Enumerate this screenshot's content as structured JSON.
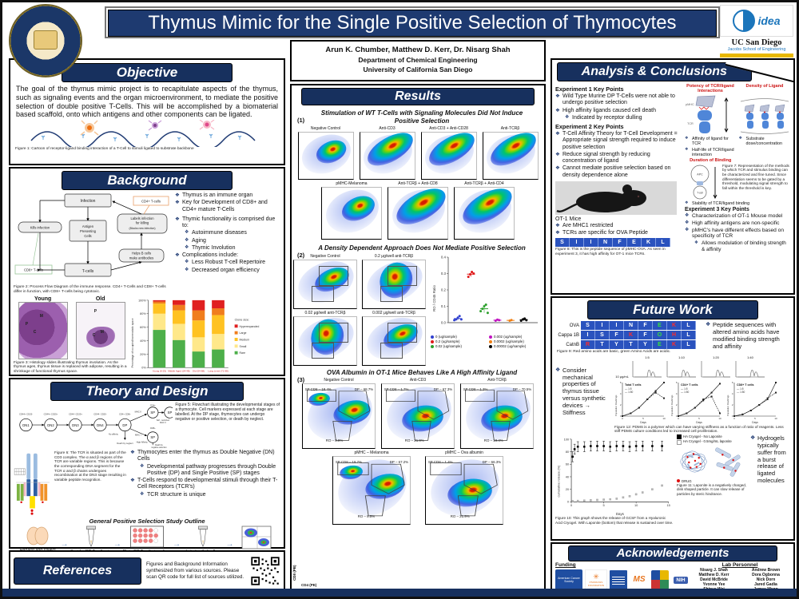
{
  "header": {
    "title": "Thymus Mimic for the Single Positive Selection of Thymocytes",
    "idea_logo": "idea",
    "ucsd": "UC San Diego",
    "school": "Jacobs School of Engineering"
  },
  "authors": {
    "names": "Arun K. Chumber, Matthew D. Kerr, Dr. Nisarg Shah",
    "dept": "Department of Chemical Engineering",
    "univ": "University of California San Diego"
  },
  "objective": {
    "heading": "Objective",
    "body": "The goal of the thymus mimic project is to recapitulate aspects of the thymus, such as signaling events and the organ microenvironment, to mediate the positive selection of double positive T-Cells. This will be accomplished by a biomaterial based scaffold, onto which antigens and other components can be ligated.",
    "fig1": "Figure 1: Cartoon of receptor-ligand binding interaction of a T-Cell to stimuli ligated to substrate backbone"
  },
  "background": {
    "heading": "Background",
    "flow": {
      "infection": "Infection",
      "kills": "Kills infection",
      "apc1": "Antigen",
      "apc2": "Presenting",
      "apc3": "Cells",
      "labels1": "Labels infection",
      "labels2": "for killing",
      "labels3": "(Blocks new infection)",
      "helps1": "Helps B cells",
      "helps2": "make antibodies",
      "tcells": "T-cells",
      "cd4": "CD4+ T-cells",
      "cd8": "CD8+ T-cells"
    },
    "fig2": "Figure 2: Process Flow Diagram of the immune response. CD4+ T-Cells and CD8+ T-cells differ in function, with CD8+ T-cells being cytotoxic.",
    "bullets1": [
      "Thymus is an immune organ",
      "Key for Development of CD8+ and CD4+ mature T-Cells"
    ],
    "b2_title": "Thymic functionality is comprised due to:",
    "bullets2": [
      "Autoimmune diseases",
      "Aging",
      "Thymic Involution"
    ],
    "b3_title": "Complications include:",
    "bullets3": [
      "Less Robust T-cell Repertoire",
      "Decreased organ efficiency"
    ],
    "young": "Young",
    "old": "Old",
    "young_marks": [
      "M",
      "C",
      "P"
    ],
    "old_marks": [
      "P",
      "C",
      "M"
    ],
    "fig3": "Figure 3: Histology slides illustrating thymus involution. As the thymus ages, thymus tissue is replaced with adipose, resulting in a shrinkage of functional thymus space."
  },
  "theory": {
    "heading": "Theory and Design",
    "fig5": "Figure 5: Flowchart illustrating the developmental stages of a thymocyte. Cell markers expressed at each stage are labelled. At the DP stage, thymocytes can undergo negative or positive selection, or death by neglect.",
    "stages": [
      "DN1",
      "DN2",
      "DN3",
      "DN4",
      "DP"
    ],
    "sp": "SP",
    "stage_markers": [
      "CD44+ CD25-",
      "CD44+ CD25+",
      "CD44- CD25+",
      "CD44- CD25-",
      "CD4+ CD8+"
    ],
    "ann": {
      "mhc2": "MHC II",
      "mhc1": "MHC I",
      "no_aff": "No affinity",
      "neglect": "Death by neglect",
      "high_aff": "High Affinity",
      "neg1": "Death by",
      "neg2": "negative selection",
      "self1": "Self - restricted",
      "self2": "MHC II",
      "cd4": "CD4+",
      "cd8": "CD8+"
    },
    "fig6": "Figure 6: The TCR is situated as part of the CD3 complex. The α and β regions of the TCR are variable regions. This is because the corresponding DNA segment for the TCR α and β chains undergoes recombination at the DN3 stage resulting in variable peptide recognition.",
    "bullets": [
      "Thymocytes enter the thymus as Double Negative (DN) Cells",
      "Developmental pathway progresses through Double Positive (DP) and Single Positive (SP) stages",
      "T-Cells respond to developmental stimuli through their T-Cell Receptors (TCR's)",
      "TCR structure is unique"
    ],
    "outline_title": "General Positive Selection Study Outline",
    "steps": [
      "Harvest and collect murine cells from thymus",
      "Sort for DP T-cells via flow cytometry",
      "Plate DP T-cells in culture conditions",
      "Label cells for flow cytometry",
      "Analyze with flow Cytometry"
    ]
  },
  "references": {
    "heading": "References",
    "body": "Figures and Background Information synthesized from various sources. Please scan QR code for full list of sources utilized."
  },
  "results": {
    "heading": "Results",
    "s1": {
      "num": "(1)",
      "title": "Stimulation of WT T-Cells with Signaling Molecules Did Not Induce Positive Selection",
      "row1": [
        "Negative Control",
        "Anti-CD3",
        "Anti-CD3 + Anti-CD28",
        "Anti-TCRβ"
      ],
      "row2": [
        "pMHC-Melanoma",
        "Anti-TCRβ + Anti-CD8",
        "Anti-TCRβ + Anti-CD4"
      ]
    },
    "s2": {
      "num": "(2)",
      "title": "A Density Dependent Approach Does Not Mediate Positive Selection",
      "plots": [
        "Negative Control",
        "0.2 μg/well anti-TCRβ",
        "0.02 μg/well anti-TCRβ",
        "0.002 μg/well anti-TCRβ"
      ]
    },
    "s3": {
      "num": "(3)",
      "title": "OVA Albumin in OT-1 Mice Behaves Like A High Affinity Ligand",
      "row1": [
        {
          "t": "Negative Control",
          "sp": "SP CD8 – 18.4%",
          "dp": "DP – 68.7%",
          "ro": "RO – 8.9%"
        },
        {
          "t": "Anti-CD3",
          "sp": "SP CD8 – 1.7%",
          "dp": "DP – 67.3%",
          "ro": "RO – 21.9%"
        },
        {
          "t": "Anti-TCRβ",
          "sp": "SP CD8 – 1.3%",
          "dp": "DP – 70.5%",
          "ro": "RO – 19.4%"
        }
      ],
      "row2": [
        {
          "t": "pMHC – Melanoma",
          "sp": "SP CD8 – 19.7%",
          "dp": "DP – 67.2%",
          "ro": "RO – 8.5%"
        },
        {
          "t": "pMHC – Ova albumin",
          "sp": "SP CD8 – 1.4%",
          "dp": "DP – 66.3%",
          "ro": "RO – 21.9%"
        }
      ]
    },
    "yaxis": "CD8 (PB)",
    "xaxis": "CD4 (PE)"
  },
  "analysis": {
    "heading": "Analysis & Conclusions",
    "exp1_title": "Experiment 1 Key Points",
    "exp1": [
      "Wild Type Murine DP T-Cells were not able to undergo positive selection",
      "High affinity ligands caused cell death"
    ],
    "exp1_sub": "Indicated by receptor dulling",
    "exp2_title": "Experiment 2 Key Points",
    "exp2": [
      "T-Cell Affinity Theory for T-Cell Development = Appropriate signal strength required to induce positive selection",
      "Reduce signal strength by reducing concentration of ligand",
      "Cannot mediate positive selection based on density dependence alone"
    ],
    "potency": "Potency of TCR/ligand Interactions",
    "density": "Density of Ligand",
    "pmhc": "pMHC",
    "tcr": "TCR",
    "aff_bullets": [
      "Affinity of ligand for TCR",
      "Half-life of TCR/ligand interaction"
    ],
    "duration": "Duration of Binding",
    "substrate": "Substrate dose/concentration",
    "apc": "APC",
    "tcell": "T-cell",
    "fig7": "Figure 7: Representation of the methods by which TCR and stimulus binding can be characterized and fine tuned. Since differentiation seems to be gated by a threshold, modulating signal strength to fall within the threshold is key.",
    "stability": "Stability of TCR/ligand binding",
    "exp3_title": "Experiment 3 Key Points",
    "exp3": [
      "Characterization of OT-1 Mouse model",
      "High affinity antigens are non-specific",
      "pMHC's have different effects based on specificity of TCR"
    ],
    "exp3_sub": "Allows modulation of binding strength & affinity",
    "ot1_title": "OT-1 Mice",
    "ot1": [
      "Are MHC1 restricted",
      "TCRs are specific for OVA Peptide"
    ],
    "peptide": [
      "S",
      "I",
      "I",
      "N",
      "F",
      "E",
      "K",
      "L"
    ],
    "fig8": "Figure 8: This is the peptide sequence of pMHC-OVA. As seen in experiment 3, it has high affinity for OT-1 mice TCRs."
  },
  "future": {
    "heading": "Future Work",
    "pep_rows": [
      {
        "label": "OVA",
        "seq": [
          "S",
          "I",
          "I",
          "N",
          "F",
          "E",
          "K",
          "L"
        ],
        "cls": [
          "w",
          "w",
          "w",
          "w",
          "w",
          "g",
          "r",
          "w"
        ]
      },
      {
        "label": "Cappa 1B",
        "seq": [
          "I",
          "S",
          "F",
          "K",
          "F",
          "O",
          "H",
          "L"
        ],
        "cls": [
          "w",
          "w",
          "w",
          "r",
          "w",
          "g",
          "r",
          "w"
        ]
      },
      {
        "label": "CatnB",
        "seq": [
          "R",
          "T",
          "Y",
          "T",
          "Y",
          "E",
          "K",
          "L"
        ],
        "cls": [
          "r",
          "w",
          "w",
          "w",
          "w",
          "g",
          "r",
          "w"
        ]
      }
    ],
    "fig9": "Figure 9: Red amino acids are basic, green Amino Acids are acidic.",
    "b1": "Peptide sequences with altered amino acids have modified binding strength and affinity",
    "b2": "Consider mechanical properties of thymus tissue versus synthetic devices → Stiffness",
    "conc": "10 μg/mL",
    "fig12": "Figure 12: PDMS is a polymer which can have varying stiffness as a function of ratio of reagents. Less stiff PDMS culture conditions led to increased cell proliferation.",
    "fig10": "Figure 10: This graph shows the release of GCSF from a Hyaluronic Acid Cryogel. With Laponite (bottom) that release is sustained over time.",
    "fig11": "Figure 11: Laponite is a negatively charged, disk shaped particle. It can slow release of particles by steric hindrance.",
    "drug": "DRUG",
    "b3": "Hydrogels typically suffer from a burst release of ligated molecules"
  },
  "ack": {
    "heading": "Acknowledgements",
    "funding": "Funding",
    "lab": "Lab Personnel",
    "col1": [
      "Nisarg J. Shah",
      "Matthew D. Kerr",
      "David McBride",
      "Yvonne Yee",
      "Shinya Wai"
    ],
    "col2": [
      "Andrew Brown",
      "Dora Ogbonna",
      "Nick Dorn",
      "Jared Gadia",
      "James Wang"
    ],
    "logos": [
      {
        "name": "american-cancer-society-logo",
        "text": "American Cancer Society"
      },
      {
        "name": "psoriasis-foundation-logo",
        "text": "PSORIASIS FOUNDATION"
      },
      {
        "name": "research-banner-logo",
        "text": ""
      },
      {
        "name": "ms-society-logo",
        "text": "MS"
      },
      {
        "name": "partner-grid-logo",
        "text": ""
      },
      {
        "name": "nih-logo",
        "text": "NIH"
      }
    ]
  },
  "chart_data": [
    {
      "id": "clone_size",
      "type": "bar",
      "stacked": true,
      "ylabel": "Percentage of occupied homeostatic space",
      "categories": [
        "Young (6-25)",
        "Middle Aged (34-48)",
        "Old (54-68)",
        "Long Lived (71-98)"
      ],
      "legend_title": "Clone size:",
      "series": [
        {
          "name": "Hyperexpanded",
          "color": "#e02020",
          "values": [
            2,
            7,
            15,
            12
          ]
        },
        {
          "name": "Large",
          "color": "#f07d1d",
          "values": [
            3,
            8,
            15,
            10
          ]
        },
        {
          "name": "Medium",
          "color": "#ffc222",
          "values": [
            15,
            20,
            25,
            28
          ]
        },
        {
          "name": "Small",
          "color": "#ffe88a",
          "values": [
            24,
            24,
            21,
            23
          ]
        },
        {
          "name": "Rare",
          "color": "#4daf4a",
          "values": [
            56,
            41,
            24,
            27
          ]
        }
      ],
      "ylim": [
        0,
        100
      ],
      "ticks": [
        "0%",
        "20%",
        "40%",
        "60%",
        "80%",
        "100%"
      ]
    },
    {
      "id": "ro_cd45",
      "type": "scatter",
      "ylabel": "RO / CD45 Ratio",
      "ylim": [
        0,
        0.4
      ],
      "groups": [
        {
          "label": "0 (ug/sample)",
          "color": "#3040cf",
          "values": [
            0.015,
            0.02,
            0.03,
            0.04,
            0.02
          ]
        },
        {
          "label": "0.2 (ug/sample)",
          "color": "#e01b1b",
          "values": [
            0.28,
            0.295,
            0.31,
            0.3
          ]
        },
        {
          "label": "0.02 (ug/sample)",
          "color": "#2ca02c",
          "values": [
            0.07,
            0.085,
            0.1,
            0.11,
            0.06
          ]
        },
        {
          "label": "0.002 (ug/sample)",
          "color": "#c013c0",
          "values": [
            0.012,
            0.018,
            0.015
          ]
        },
        {
          "label": "0.0002 (ug/sample)",
          "color": "#f07f13",
          "values": [
            0.012,
            0.016
          ]
        },
        {
          "label": "0.00002 (ug/sample)",
          "color": "#000000",
          "values": [
            0.012,
            0.02,
            0.025,
            0.015
          ]
        }
      ]
    },
    {
      "id": "release",
      "type": "scatter",
      "xlabel": "Days",
      "ylabel": "cumulative release (%)",
      "xlim": [
        0,
        15
      ],
      "ylim": [
        0,
        100
      ],
      "series": [
        {
          "name": "HA Cryogel - No Laponite",
          "color": "#000000",
          "x": [
            0.2,
            0.5,
            1,
            2,
            3,
            4,
            5,
            6,
            7,
            8,
            9,
            10,
            11,
            12.5,
            14
          ],
          "y": [
            72,
            84,
            88,
            88,
            89,
            89,
            89,
            88,
            89,
            89,
            88,
            89,
            89,
            89,
            89
          ],
          "err": 8
        },
        {
          "name": "HA Cryogel - 0.5mg/mL laponite",
          "color": "#9a9a9a",
          "x": [
            0.2,
            1,
            2,
            3,
            4,
            5,
            6,
            7,
            8,
            9,
            10,
            11,
            12.5,
            14
          ],
          "y": [
            1,
            1.5,
            2,
            2.5,
            3,
            3.5,
            4,
            5,
            7,
            9,
            12,
            15,
            20,
            26
          ],
          "err": 2
        }
      ]
    },
    {
      "id": "pdms",
      "type": "line",
      "xlabel": "Days",
      "ylabel": "Population Doublings",
      "x": [
        0,
        2,
        4,
        6,
        8,
        10
      ],
      "ylim": [
        0,
        6
      ],
      "hist_labels": [
        "1:5",
        "1:10",
        "1:20",
        "1:40"
      ],
      "panels": [
        {
          "name": "Total T cells",
          "series": [
            {
              "name": "1:5",
              "values": [
                0,
                0.5,
                1.5,
                3,
                4.5,
                6
              ]
            },
            {
              "name": "1:50",
              "values": [
                0,
                0.5,
                1.5,
                3,
                4.2,
                3.2
              ]
            }
          ]
        },
        {
          "name": "CD4+ T cells",
          "series": [
            {
              "name": "1:5",
              "values": [
                0,
                0.5,
                1.5,
                2.8,
                4.2,
                5.8
              ]
            },
            {
              "name": "1:50",
              "values": [
                0,
                0.5,
                1.5,
                3,
                3.5,
                0.5
              ]
            }
          ]
        },
        {
          "name": "CD8+ T cells",
          "series": [
            {
              "name": "1:5",
              "values": [
                0,
                0.3,
                1,
                2,
                3,
                6
              ]
            },
            {
              "name": "1:50",
              "values": [
                0,
                0.3,
                1,
                2,
                3.2,
                4.2
              ]
            }
          ]
        }
      ]
    }
  ]
}
